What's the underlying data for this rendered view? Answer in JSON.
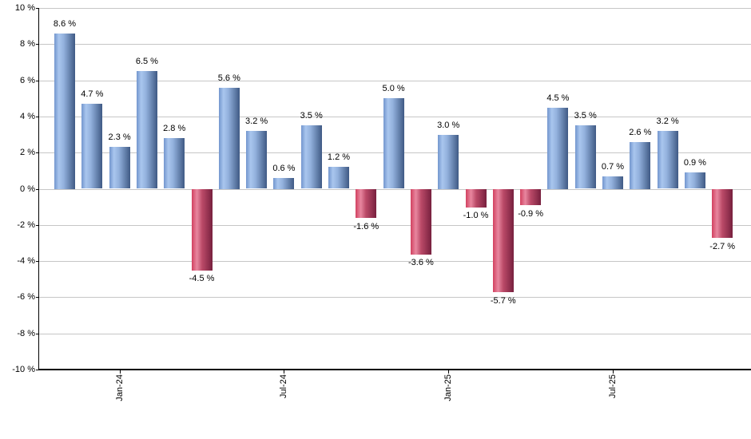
{
  "chart": {
    "background_color": "#ffffff",
    "grid_color": "#c6c6c6",
    "axis_color": "#000000",
    "positive_bar_color": "#7aa2d8",
    "positive_bar_highlight": "#a9c6ee",
    "positive_bar_shadow": "#3f5a85",
    "negative_bar_color": "#d24160",
    "negative_bar_highlight": "#e8879f",
    "negative_bar_shadow": "#77203e"
  },
  "chart_data": {
    "type": "bar",
    "title": "",
    "xlabel": "",
    "ylabel": "",
    "ylim": [
      -10,
      10
    ],
    "grid": true,
    "legend": false,
    "values": [
      8.6,
      4.7,
      2.3,
      6.5,
      2.8,
      -4.5,
      5.6,
      3.2,
      0.6,
      3.5,
      1.2,
      -1.6,
      5.0,
      -3.6,
      3.0,
      -1.0,
      -5.7,
      -0.9,
      4.5,
      3.5,
      0.7,
      2.6,
      3.2,
      0.9,
      -2.7
    ],
    "bar_labels": [
      "8.6 %",
      "4.7 %",
      "2.3 %",
      "6.5 %",
      "2.8 %",
      "-4.5 %",
      "5.6 %",
      "3.2 %",
      "0.6 %",
      "3.5 %",
      "1.2 %",
      "-1.6 %",
      "5.0 %",
      "-3.6 %",
      "3.0 %",
      "-1.0 %",
      "-5.7 %",
      "-0.9 %",
      "4.5 %",
      "3.5 %",
      "0.7 %",
      "2.6 %",
      "3.2 %",
      "0.9 %",
      "-2.7 %"
    ],
    "y_ticks": [
      {
        "label": "10 %",
        "value": 10
      },
      {
        "label": "8 %",
        "value": 8
      },
      {
        "label": "6 %",
        "value": 6
      },
      {
        "label": "4 %",
        "value": 4
      },
      {
        "label": "2 %",
        "value": 2
      },
      {
        "label": "0 %",
        "value": 0
      },
      {
        "label": "-2 %",
        "value": -2
      },
      {
        "label": "-4 %",
        "value": -4
      },
      {
        "label": "-6 %",
        "value": -6
      },
      {
        "label": "-8 %",
        "value": -8
      },
      {
        "label": "-10 %",
        "value": -10
      }
    ],
    "x_ticks": [
      {
        "label": "Jan-24",
        "bar_index": 2
      },
      {
        "label": "Jul-24",
        "bar_index": 8
      },
      {
        "label": "Jan-25",
        "bar_index": 14
      },
      {
        "label": "Jul-25",
        "bar_index": 20
      }
    ]
  }
}
